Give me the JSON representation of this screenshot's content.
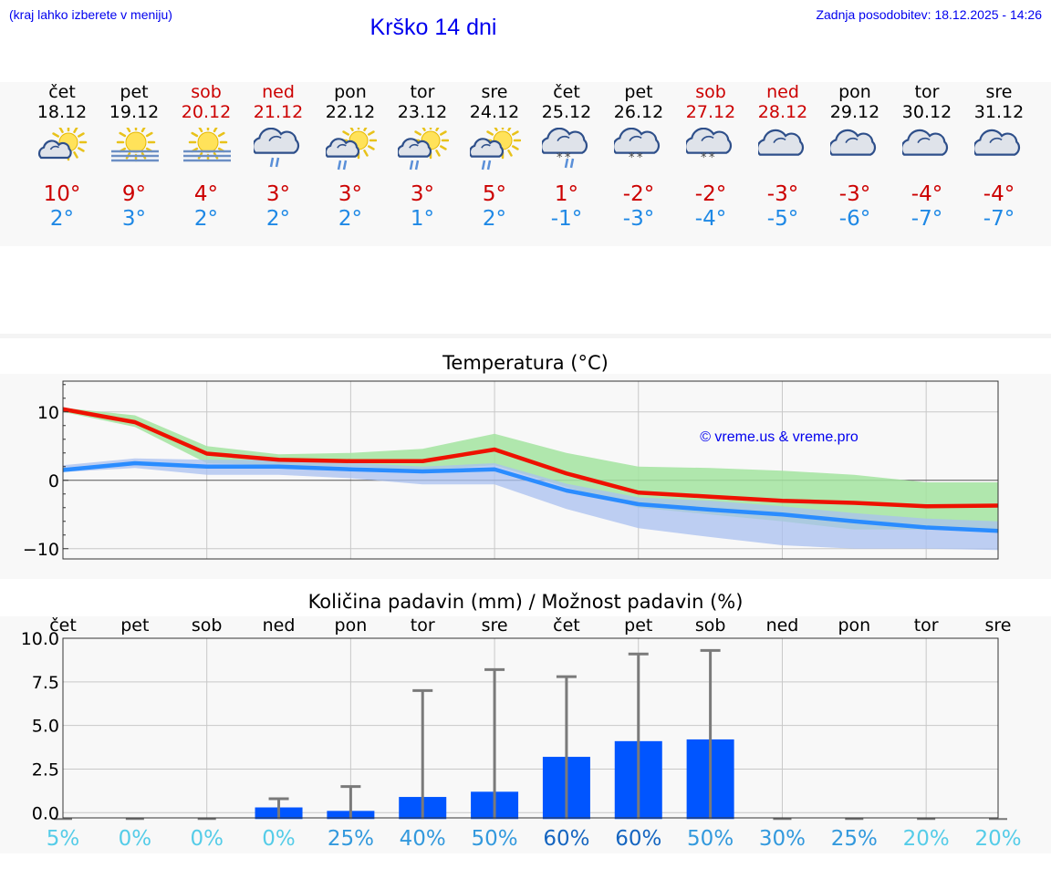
{
  "header": {
    "menu_hint": "(kraj lahko izberete v meniju)",
    "title": "Krško 14 dni",
    "last_update": "Zadnja posodobitev: 18.12.2025 - 14:26"
  },
  "colors": {
    "link": "#0000ee",
    "max_temp": "#cc0000",
    "min_temp": "#1e88e5",
    "bar": "#0055ff",
    "green_band": "#a3e4a0",
    "blue_band": "#a9c0f0"
  },
  "days": [
    {
      "name": "čet",
      "date": "18.12",
      "icon": "sun-cloud-icon",
      "tmax": "10°",
      "tmin": "2°",
      "weekend": false
    },
    {
      "name": "pet",
      "date": "19.12",
      "icon": "sun-fog-icon",
      "tmax": "9°",
      "tmin": "3°",
      "weekend": false
    },
    {
      "name": "sob",
      "date": "20.12",
      "icon": "sun-fog-icon",
      "tmax": "4°",
      "tmin": "2°",
      "weekend": true
    },
    {
      "name": "ned",
      "date": "21.12",
      "icon": "cloud-rain-icon",
      "tmax": "3°",
      "tmin": "2°",
      "weekend": true
    },
    {
      "name": "pon",
      "date": "22.12",
      "icon": "sun-cloud-rain-icon",
      "tmax": "3°",
      "tmin": "2°",
      "weekend": false
    },
    {
      "name": "tor",
      "date": "23.12",
      "icon": "sun-cloud-rain-icon",
      "tmax": "3°",
      "tmin": "1°",
      "weekend": false
    },
    {
      "name": "sre",
      "date": "24.12",
      "icon": "sun-cloud-rain-icon",
      "tmax": "5°",
      "tmin": "2°",
      "weekend": false
    },
    {
      "name": "čet",
      "date": "25.12",
      "icon": "cloud-sleet-icon",
      "tmax": "1°",
      "tmin": "-1°",
      "weekend": false
    },
    {
      "name": "pet",
      "date": "26.12",
      "icon": "cloud-snow-icon",
      "tmax": "-2°",
      "tmin": "-3°",
      "weekend": false
    },
    {
      "name": "sob",
      "date": "27.12",
      "icon": "cloud-snow-icon",
      "tmax": "-2°",
      "tmin": "-4°",
      "weekend": true
    },
    {
      "name": "ned",
      "date": "28.12",
      "icon": "cloud-icon",
      "tmax": "-3°",
      "tmin": "-5°",
      "weekend": true
    },
    {
      "name": "pon",
      "date": "29.12",
      "icon": "cloud-icon",
      "tmax": "-3°",
      "tmin": "-6°",
      "weekend": false
    },
    {
      "name": "tor",
      "date": "30.12",
      "icon": "cloud-icon",
      "tmax": "-4°",
      "tmin": "-7°",
      "weekend": false
    },
    {
      "name": "sre",
      "date": "31.12",
      "icon": "cloud-icon",
      "tmax": "-4°",
      "tmin": "-7°",
      "weekend": false
    }
  ],
  "chart_data": [
    {
      "type": "line",
      "title": "Temperatura (°C)",
      "watermark": "© vreme.us & vreme.pro",
      "x": [
        0,
        1,
        2,
        3,
        4,
        5,
        6,
        7,
        8,
        9,
        10,
        11,
        12,
        13
      ],
      "ylim": [
        -11.5,
        14.5
      ],
      "yticks": [
        {
          "v": 10,
          "label": "10"
        },
        {
          "v": 0,
          "label": "0"
        },
        {
          "v": -10,
          "label": "−10"
        }
      ],
      "grid": true,
      "series": [
        {
          "name": "max",
          "values": [
            10.4,
            8.5,
            3.9,
            3.0,
            2.8,
            2.8,
            4.5,
            1.0,
            -1.8,
            -2.4,
            -3.0,
            -3.3,
            -3.8,
            -3.7
          ]
        },
        {
          "name": "min",
          "values": [
            1.5,
            2.5,
            2.0,
            2.0,
            1.6,
            1.3,
            1.6,
            -1.5,
            -3.5,
            -4.3,
            -5.0,
            -6.0,
            -6.9,
            -7.4
          ]
        }
      ],
      "bands": [
        {
          "name": "max-range",
          "upper": [
            10.6,
            9.5,
            5.0,
            3.8,
            4.0,
            4.6,
            6.8,
            4.0,
            2.0,
            1.8,
            1.4,
            0.8,
            -0.3,
            -0.3
          ],
          "lower": [
            10.0,
            7.8,
            2.5,
            2.2,
            2.0,
            1.5,
            2.2,
            -1.0,
            -4.0,
            -5.0,
            -6.0,
            -7.2,
            -7.2,
            -7.4
          ]
        },
        {
          "name": "min-range",
          "upper": [
            2.2,
            3.2,
            3.0,
            3.0,
            2.6,
            2.0,
            2.5,
            -0.5,
            -2.5,
            -3.0,
            -3.8,
            -4.8,
            -5.6,
            -6.0
          ],
          "lower": [
            1.2,
            1.8,
            0.8,
            0.8,
            0.3,
            -0.6,
            -0.6,
            -4.2,
            -7.0,
            -8.3,
            -9.5,
            -10.0,
            -10.0,
            -10.2
          ]
        }
      ]
    },
    {
      "type": "bar",
      "title": "Količina padavin (mm) / Možnost padavin (%)",
      "categories": [
        "čet",
        "pet",
        "sob",
        "ned",
        "pon",
        "tor",
        "sre",
        "čet",
        "pet",
        "sob",
        "ned",
        "pon",
        "tor",
        "sre"
      ],
      "values": [
        0.0,
        0.0,
        0.0,
        0.3,
        0.1,
        0.9,
        1.2,
        3.2,
        4.1,
        4.2,
        0.0,
        0.0,
        0.0,
        0.0
      ],
      "error_high": [
        0.0,
        0.0,
        0.0,
        0.8,
        1.5,
        7.0,
        8.2,
        7.8,
        9.1,
        9.3,
        0.0,
        0.0,
        0.0,
        0.0
      ],
      "probability": [
        "5%",
        "0%",
        "0%",
        "0%",
        "25%",
        "40%",
        "50%",
        "60%",
        "60%",
        "50%",
        "30%",
        "25%",
        "20%",
        "20%"
      ],
      "probability_values": [
        5,
        0,
        0,
        0,
        25,
        40,
        50,
        60,
        60,
        50,
        30,
        25,
        20,
        20
      ],
      "ylim": [
        -0.3,
        10.0
      ],
      "yticks": [
        {
          "v": 10,
          "label": "10.0"
        },
        {
          "v": 7.5,
          "label": "7.5"
        },
        {
          "v": 5,
          "label": "5.0"
        },
        {
          "v": 2.5,
          "label": "2.5"
        },
        {
          "v": 0,
          "label": "0.0"
        }
      ],
      "grid": true
    }
  ]
}
